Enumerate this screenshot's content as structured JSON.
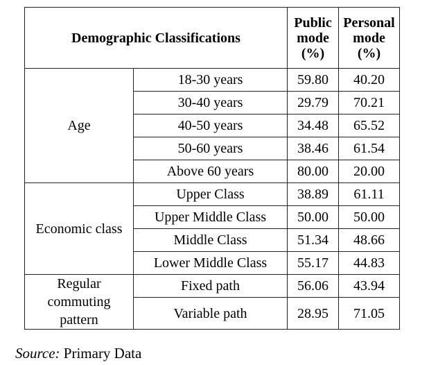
{
  "table": {
    "headers": {
      "classification": "Demographic Classifications",
      "public": [
        "Public",
        "mode",
        "(%)"
      ],
      "personal": [
        "Personal",
        "mode",
        "(%)"
      ]
    },
    "groups": [
      {
        "label": "Age",
        "rows": [
          {
            "category": "18-30 years",
            "public": "59.80",
            "personal": "40.20"
          },
          {
            "category": "30-40 years",
            "public": "29.79",
            "personal": "70.21"
          },
          {
            "category": "40-50 years",
            "public": "34.48",
            "personal": "65.52"
          },
          {
            "category": "50-60 years",
            "public": "38.46",
            "personal": "61.54"
          },
          {
            "category": "Above 60 years",
            "public": "80.00",
            "personal": "20.00"
          }
        ]
      },
      {
        "label": "Economic class",
        "rows": [
          {
            "category": "Upper Class",
            "public": "38.89",
            "personal": "61.11"
          },
          {
            "category": "Upper Middle Class",
            "public": "50.00",
            "personal": "50.00"
          },
          {
            "category": "Middle Class",
            "public": "51.34",
            "personal": "48.66"
          },
          {
            "category": "Lower Middle Class",
            "public": "55.17",
            "personal": "44.83"
          }
        ]
      },
      {
        "label_lines": [
          "Regular",
          "commuting",
          "pattern"
        ],
        "rows": [
          {
            "category": "Fixed path",
            "public": "56.06",
            "personal": "43.94"
          },
          {
            "category": "Variable path",
            "public": "28.95",
            "personal": "71.05"
          }
        ]
      }
    ]
  },
  "source": {
    "label": "Source:",
    "text": " Primary Data"
  }
}
